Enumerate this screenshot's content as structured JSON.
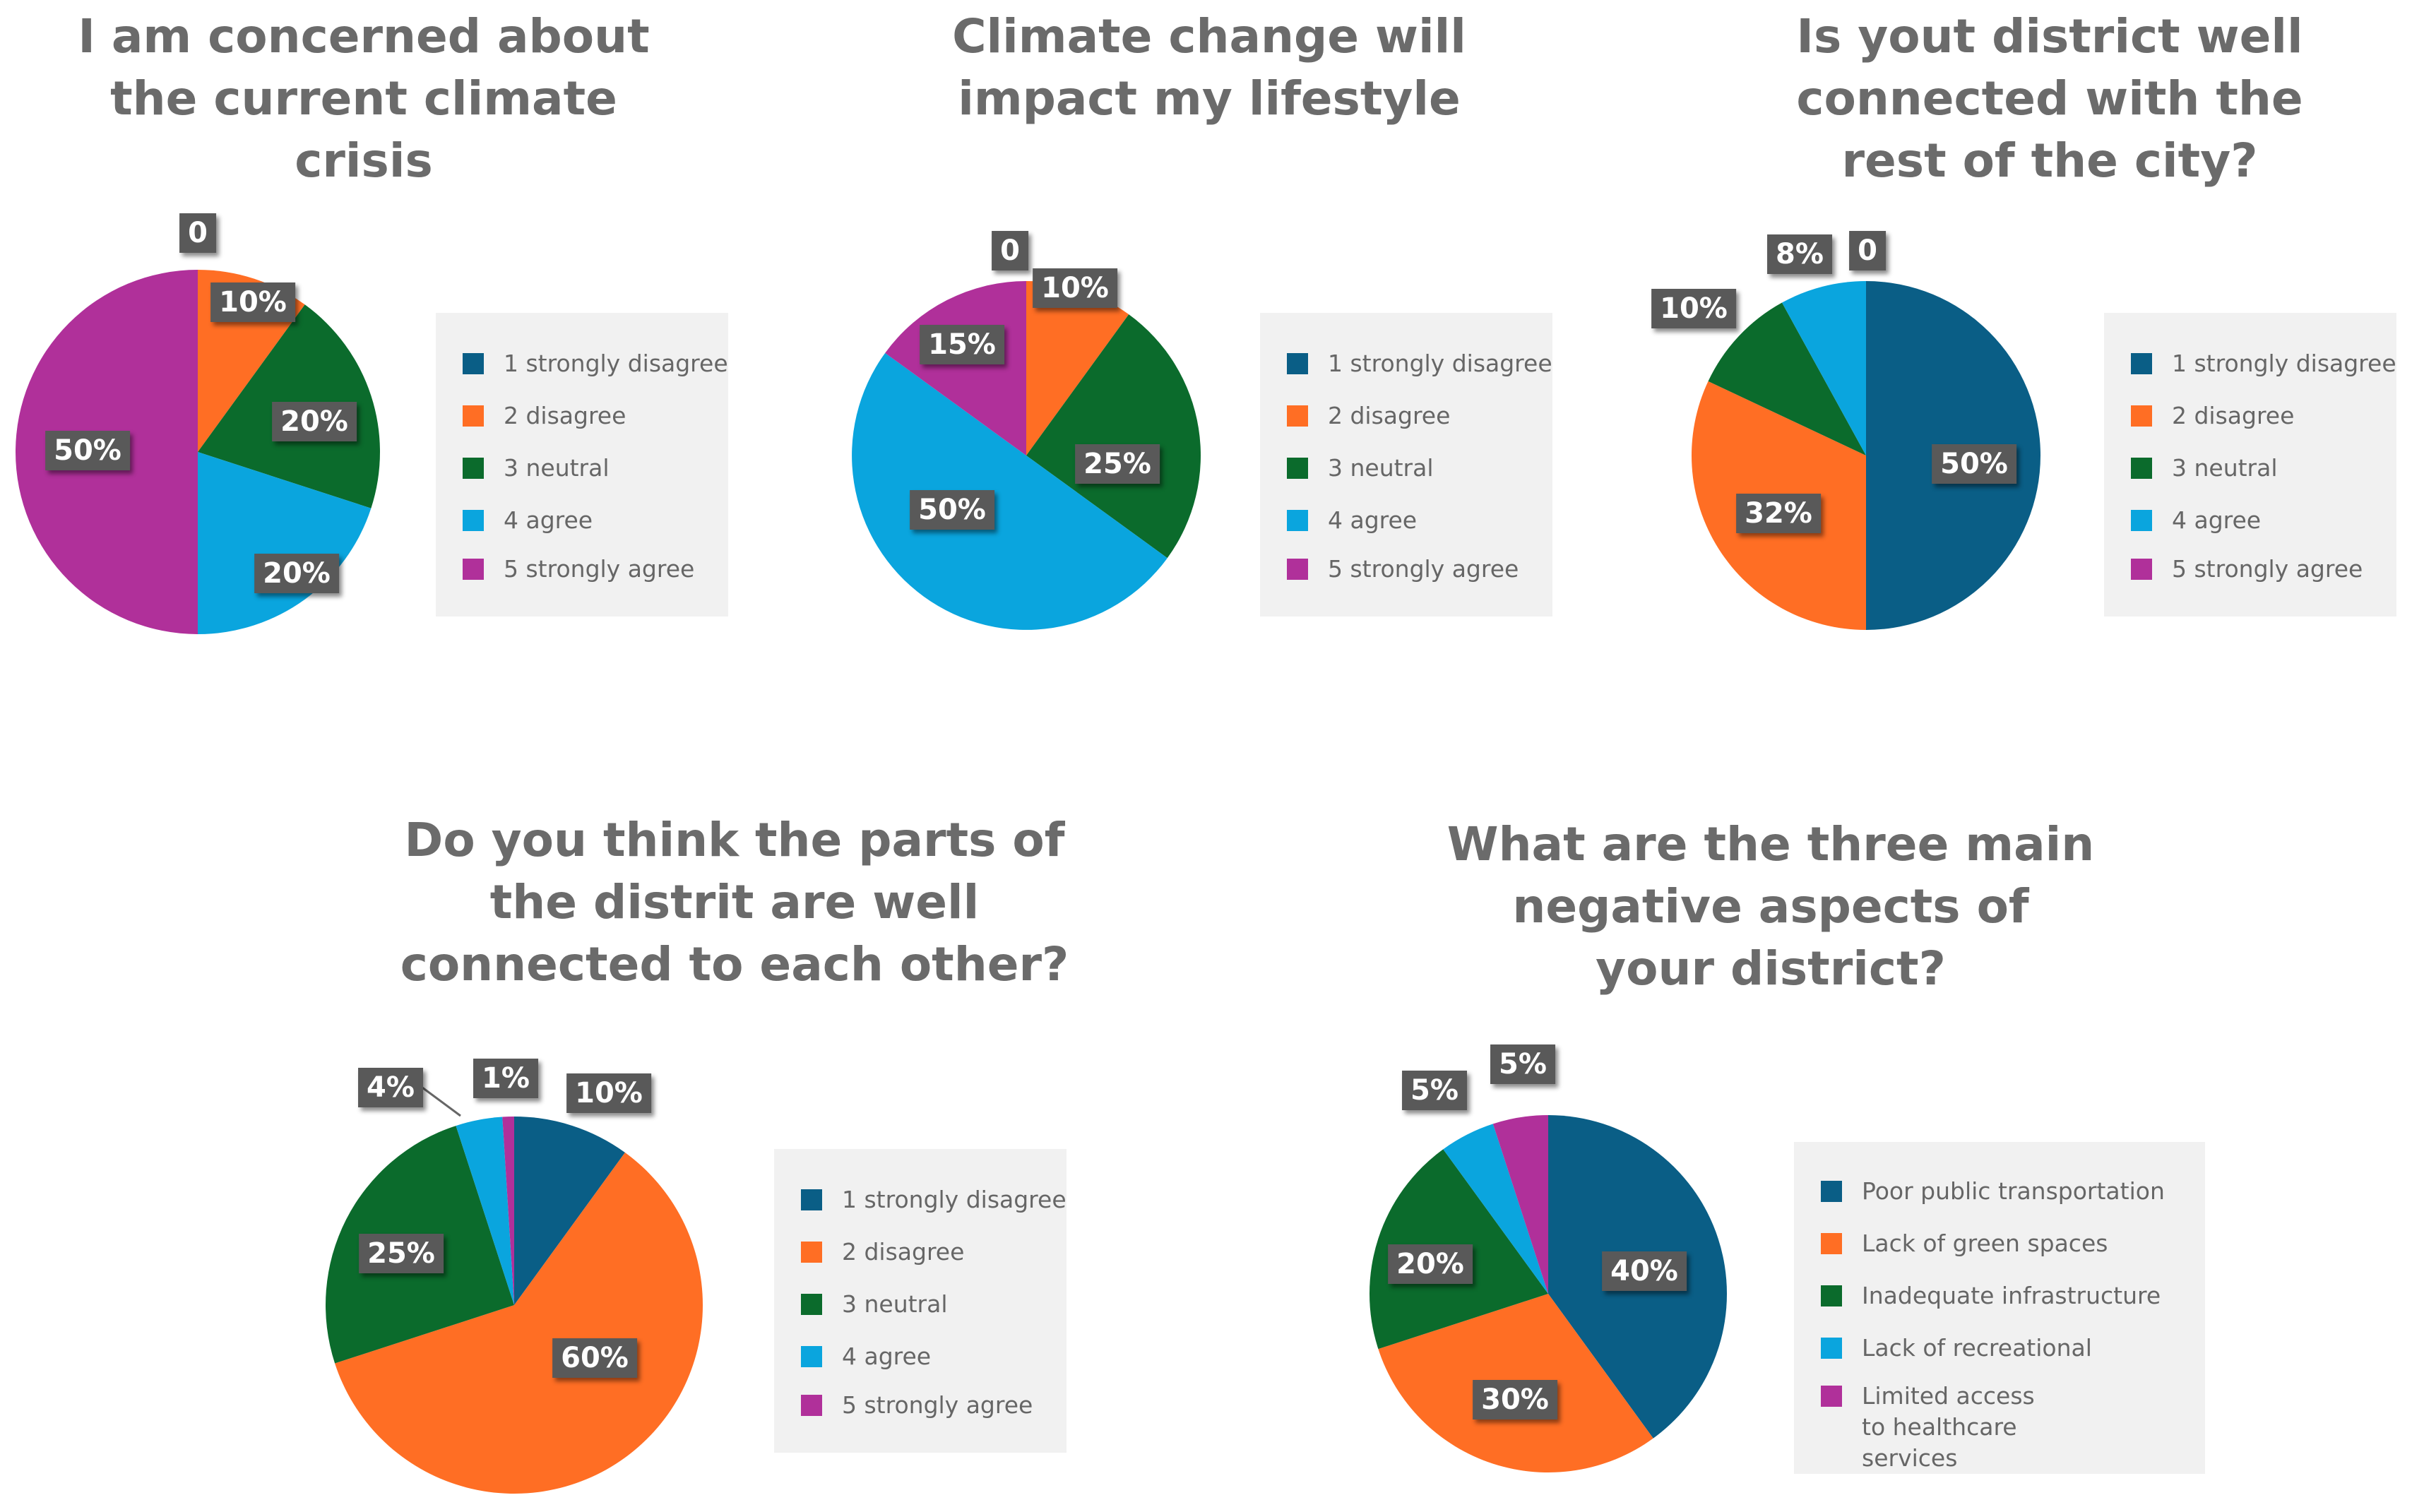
{
  "colors": {
    "c1": "#0a5e86",
    "c2": "#ff6e24",
    "c3": "#0b6b2c",
    "c4": "#0aa5de",
    "c5": "#b0309a",
    "title": "#6b6b6b",
    "legend_bg": "#f1f1f1",
    "label_bg": "#595959"
  },
  "chart_data": [
    {
      "type": "pie",
      "title": [
        "I am concerned about",
        "the current climate",
        "crisis"
      ],
      "categories": [
        "1 strongly disagree",
        "2 disagree",
        "3 neutral",
        "4 agree",
        "5 strongly agree"
      ],
      "values": [
        0,
        10,
        20,
        20,
        50
      ],
      "labels": [
        "0",
        "10%",
        "20%",
        "20%",
        "50%"
      ],
      "colors": [
        "#0a5e86",
        "#ff6e24",
        "#0b6b2c",
        "#0aa5de",
        "#b0309a"
      ]
    },
    {
      "type": "pie",
      "title": [
        "Climate change will",
        "impact my lifestyle"
      ],
      "categories": [
        "1 strongly disagree",
        "2 disagree",
        "3 neutral",
        "4 agree",
        "5 strongly agree"
      ],
      "values": [
        0,
        10,
        25,
        50,
        15
      ],
      "labels": [
        "0",
        "10%",
        "25%",
        "50%",
        "15%"
      ],
      "colors": [
        "#0a5e86",
        "#ff6e24",
        "#0b6b2c",
        "#0aa5de",
        "#b0309a"
      ]
    },
    {
      "type": "pie",
      "title": [
        "Is yout district well",
        "connected with the",
        "rest of the city?"
      ],
      "categories": [
        "1 strongly disagree",
        "2 disagree",
        "3 neutral",
        "4 agree",
        "5 strongly agree"
      ],
      "values": [
        50,
        32,
        10,
        8,
        0
      ],
      "labels": [
        "50%",
        "32%",
        "10%",
        "8%",
        "0"
      ],
      "colors": [
        "#0a5e86",
        "#ff6e24",
        "#0b6b2c",
        "#0aa5de",
        "#b0309a"
      ]
    },
    {
      "type": "pie",
      "title": [
        "Do you think the parts of",
        "the distrit are well",
        "connected to each other?"
      ],
      "categories": [
        "1 strongly disagree",
        "2 disagree",
        "3 neutral",
        "4 agree",
        "5 strongly agree"
      ],
      "values": [
        10,
        60,
        25,
        4,
        1
      ],
      "labels": [
        "10%",
        "60%",
        "25%",
        "4%",
        "1%"
      ],
      "colors": [
        "#0a5e86",
        "#ff6e24",
        "#0b6b2c",
        "#0aa5de",
        "#b0309a"
      ]
    },
    {
      "type": "pie",
      "title": [
        "What are the three main",
        "negative aspects of",
        "your district?"
      ],
      "categories": [
        "Poor public transportation",
        "Lack of green spaces",
        "Inadequate infrastructure",
        "Lack of recreational",
        "Limited access to healthcare services"
      ],
      "values": [
        40,
        30,
        20,
        5,
        5
      ],
      "labels": [
        "40%",
        "30%",
        "20%",
        "5%",
        "5%"
      ],
      "colors": [
        "#0a5e86",
        "#ff6e24",
        "#0b6b2c",
        "#0aa5de",
        "#b0309a"
      ]
    }
  ]
}
